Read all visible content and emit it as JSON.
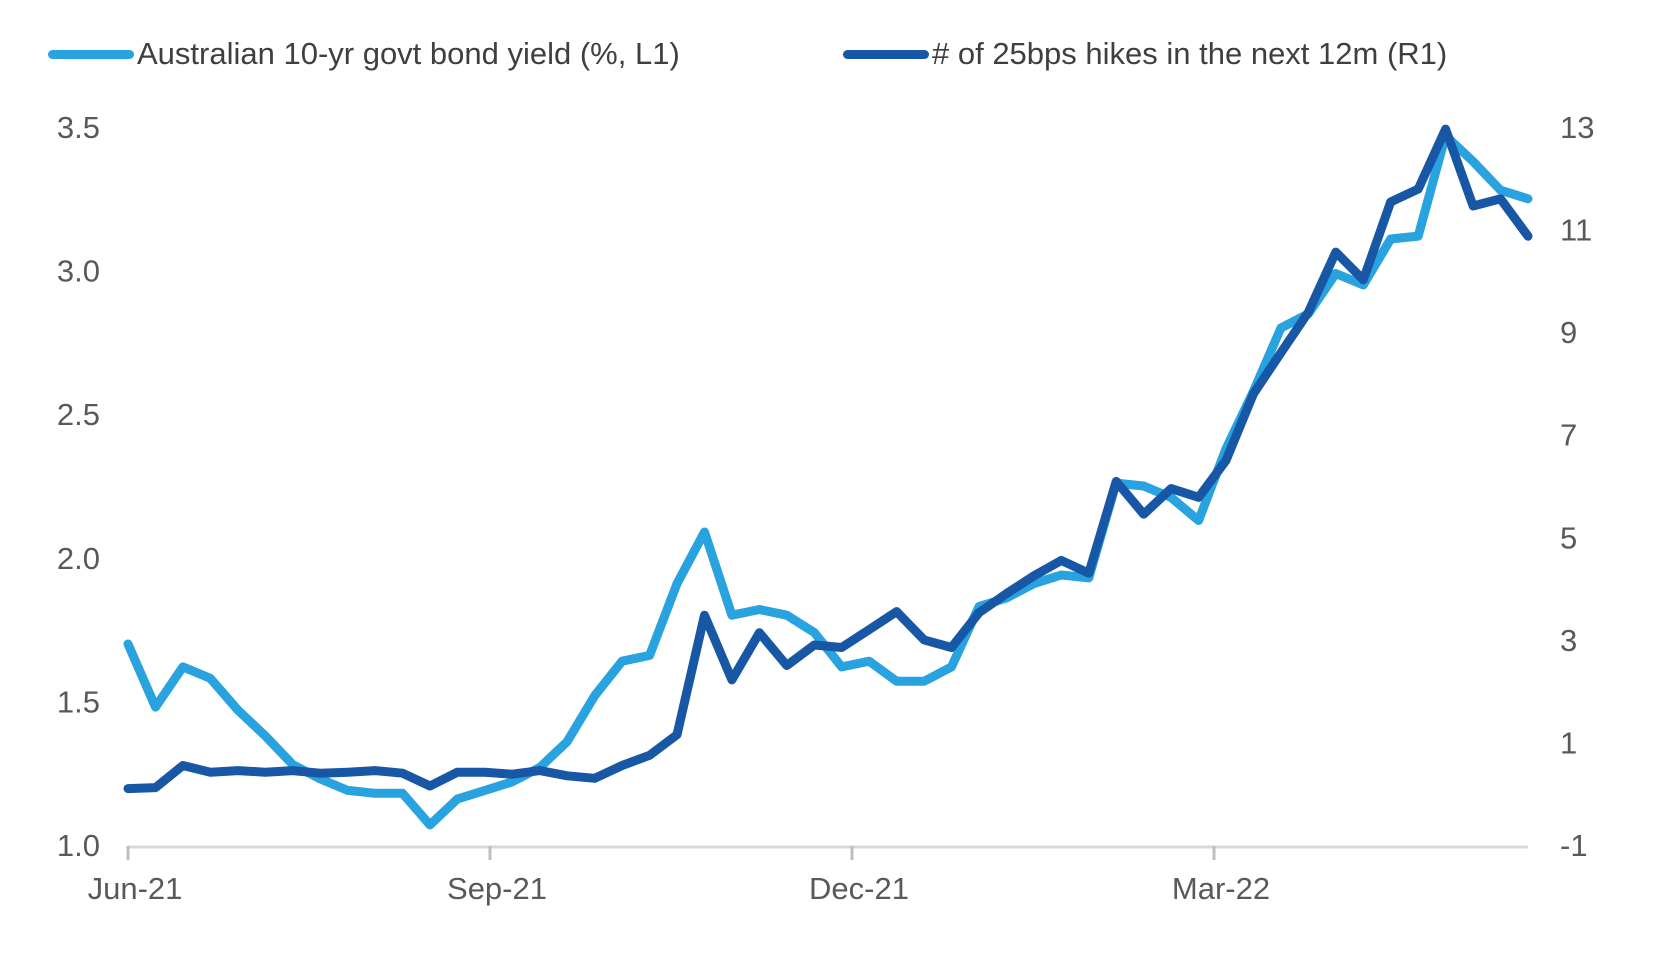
{
  "colors": {
    "background": "#ffffff",
    "axis_line": "#d9d9d9",
    "tick_mark": "#bfbfbf",
    "axis_text": "#595959",
    "legend_text": "#3f3f3f",
    "series_light_blue": "#29a2e0",
    "series_dark_blue": "#1757a5"
  },
  "chart_data": {
    "type": "line",
    "title": "",
    "x_note": "weekly observations, Jun-2021 through late May-2022",
    "x_tick_labels": [
      "Jun-21",
      "Sep-21",
      "Dec-21",
      "Mar-22"
    ],
    "left_axis": {
      "label": "Australian 10-yr govt bond yield (%)",
      "min": 1.0,
      "max": 3.5,
      "tick_values": [
        3.5,
        3.0,
        2.5,
        2.0,
        1.5,
        1.0
      ],
      "tick_labels": [
        "3.5",
        "3.0",
        "2.5",
        "2.0",
        "1.5",
        "1.0"
      ]
    },
    "right_axis": {
      "label": "# of 25bps hikes in the next 12m",
      "min": -1,
      "max": 13,
      "tick_values": [
        13,
        11,
        9,
        7,
        5,
        3,
        1,
        -1
      ],
      "tick_labels": [
        "13",
        "11",
        "9",
        "7",
        "5",
        "3",
        "1",
        "-1"
      ]
    },
    "grid": false,
    "legend_position": "top",
    "series": [
      {
        "name": "Australian 10-yr govt bond yield (%, L1)",
        "axis": "left",
        "color": "#29a2e0",
        "values": [
          1.7,
          1.48,
          1.62,
          1.58,
          1.47,
          1.38,
          1.28,
          1.23,
          1.19,
          1.18,
          1.18,
          1.07,
          1.16,
          1.19,
          1.22,
          1.27,
          1.36,
          1.52,
          1.64,
          1.66,
          1.91,
          2.09,
          1.8,
          1.82,
          1.8,
          1.74,
          1.62,
          1.64,
          1.57,
          1.57,
          1.62,
          1.83,
          1.86,
          1.91,
          1.94,
          1.93,
          2.26,
          2.25,
          2.21,
          2.13,
          2.38,
          2.58,
          2.8,
          2.85,
          2.99,
          2.95,
          3.11,
          3.12,
          3.47,
          3.38,
          3.28,
          3.25
        ]
      },
      {
        "name": "# of 25bps hikes in the next 12m (R1)",
        "axis": "right",
        "color": "#1757a5",
        "values": [
          0.1,
          0.12,
          0.55,
          0.42,
          0.45,
          0.42,
          0.45,
          0.4,
          0.42,
          0.45,
          0.4,
          0.15,
          0.42,
          0.42,
          0.38,
          0.45,
          0.35,
          0.3,
          0.55,
          0.75,
          1.15,
          3.48,
          2.22,
          3.14,
          2.5,
          2.9,
          2.85,
          3.2,
          3.55,
          3.0,
          2.85,
          3.53,
          3.9,
          4.25,
          4.55,
          4.3,
          6.09,
          5.45,
          5.95,
          5.78,
          6.5,
          7.8,
          8.6,
          9.39,
          10.56,
          10.02,
          11.54,
          11.79,
          12.96,
          11.46,
          11.6,
          10.87
        ]
      }
    ]
  }
}
